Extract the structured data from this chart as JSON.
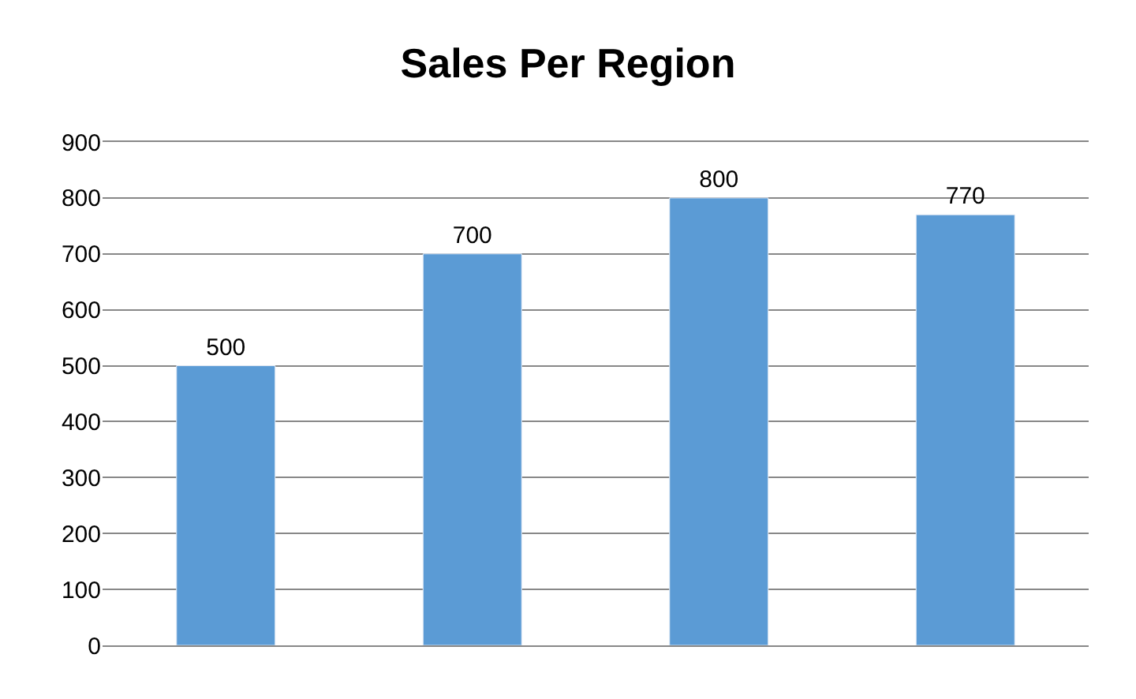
{
  "chart_data": {
    "type": "bar",
    "title": "Sales Per Region",
    "categories": [
      null,
      null,
      null,
      null
    ],
    "values": [
      500,
      700,
      800,
      770
    ],
    "color": "#5b9bd5",
    "ylim": [
      0,
      900
    ],
    "yticks": [
      0,
      100,
      200,
      300,
      400,
      500,
      600,
      700,
      800,
      900
    ],
    "grid": "y",
    "data_labels": true,
    "tick_labels": "y"
  }
}
